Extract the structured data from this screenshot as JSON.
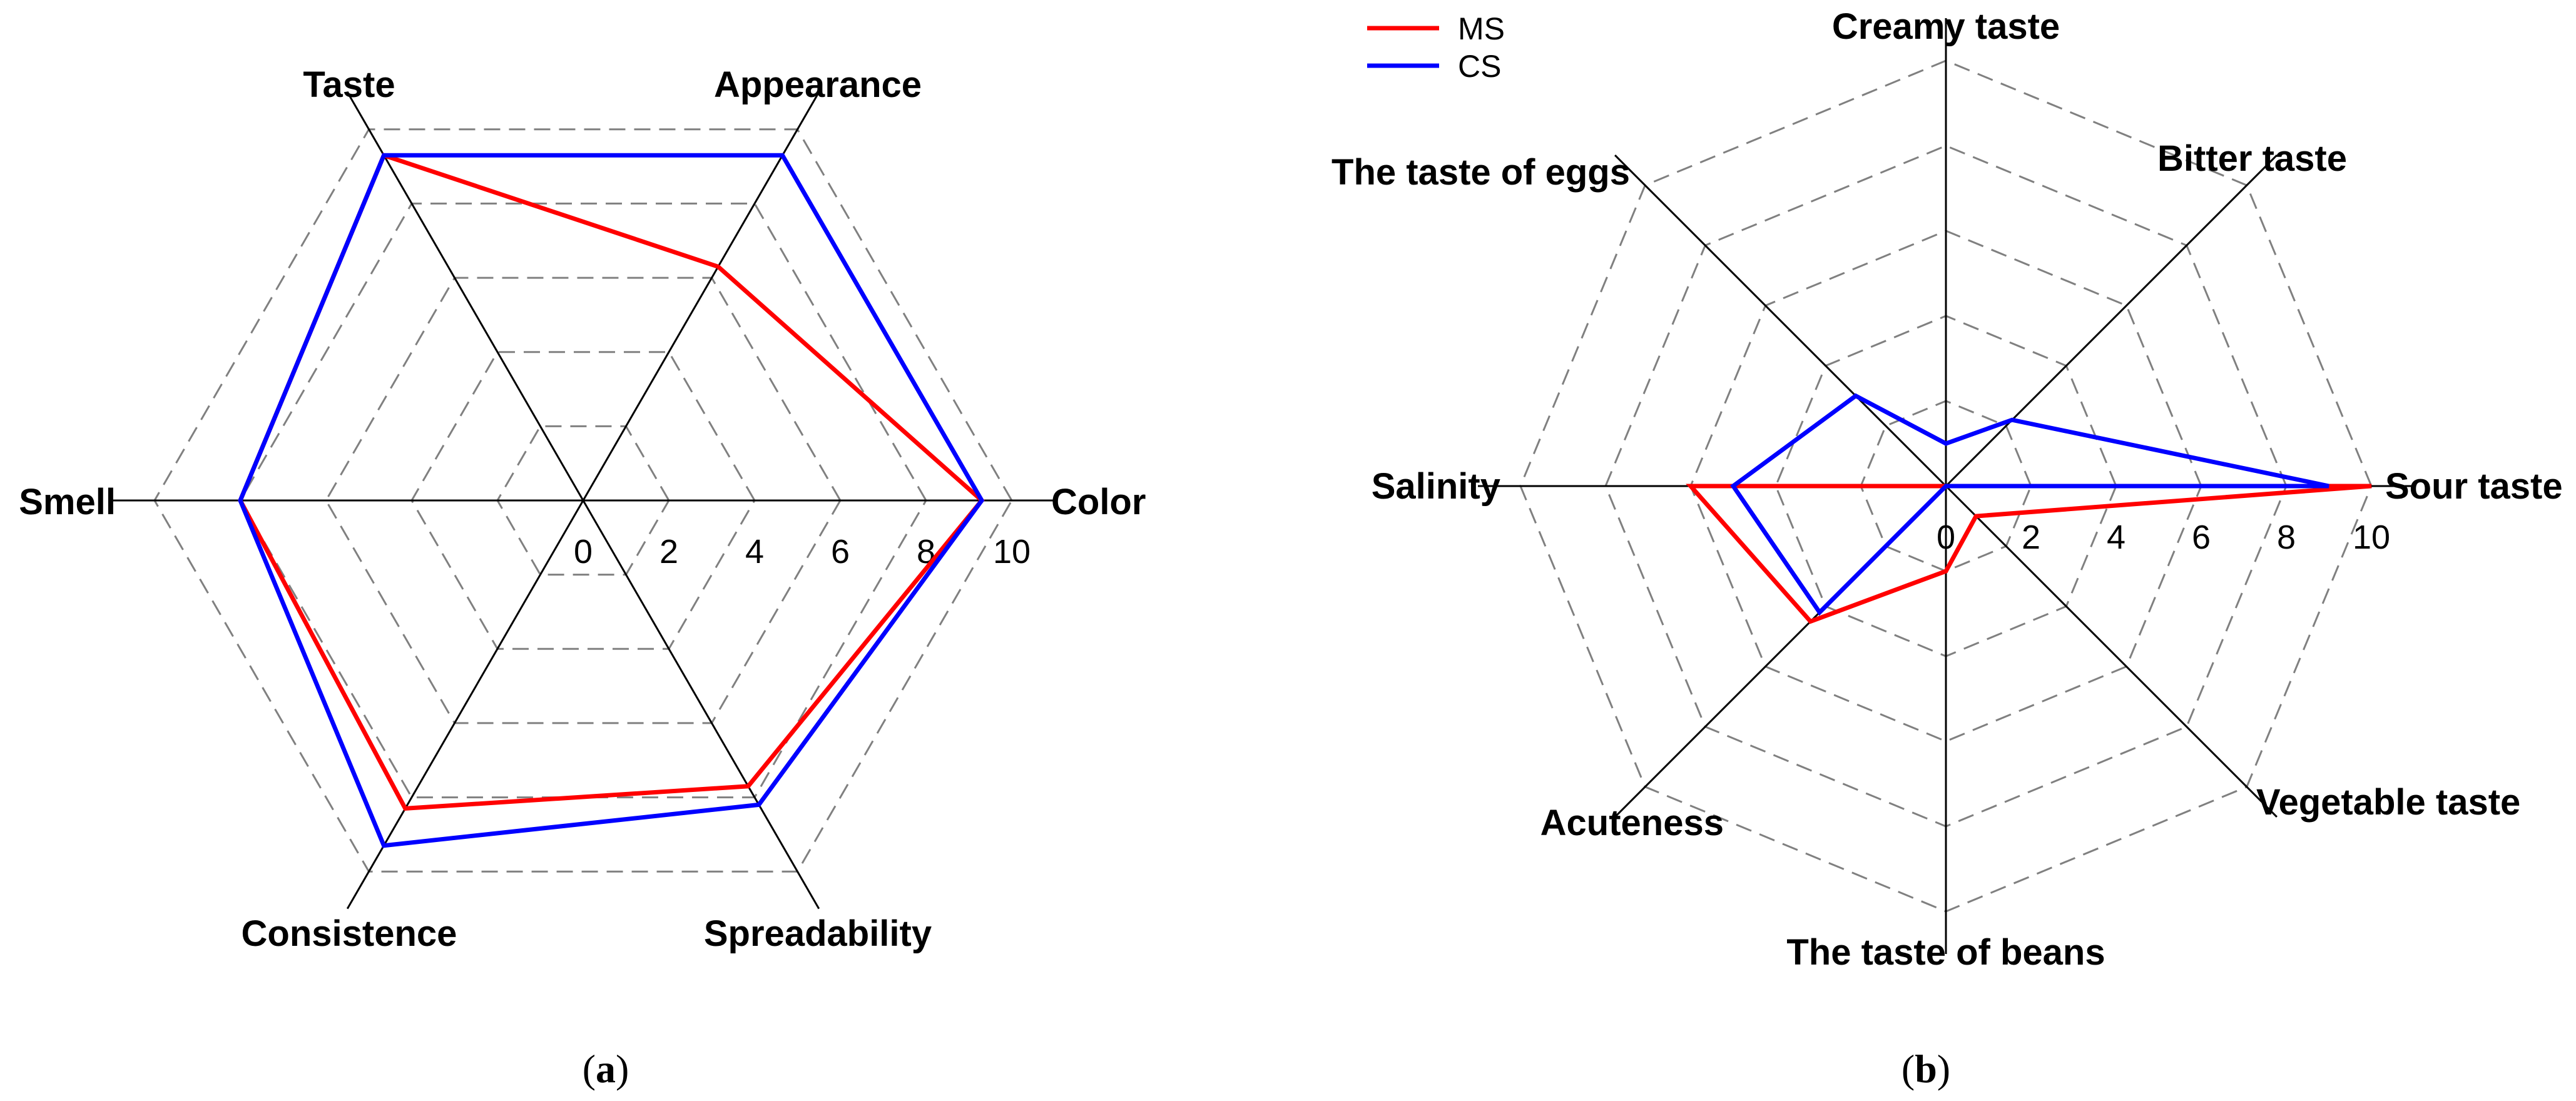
{
  "chart_data": [
    {
      "type": "radar",
      "panel_label": "a",
      "axes": [
        "Color",
        "Appearance",
        "Taste",
        "Smell",
        "Consistence",
        "Spreadability"
      ],
      "rmin": 0,
      "rmax": 10,
      "ticks": [
        0,
        2,
        4,
        6,
        8,
        10
      ],
      "grid": "dashed",
      "series": [
        {
          "name": "MS",
          "color": "#ff0000",
          "values": [
            9.3,
            6.3,
            9.3,
            8.0,
            8.3,
            7.7
          ]
        },
        {
          "name": "CS",
          "color": "#0000ff",
          "values": [
            9.3,
            9.3,
            9.3,
            8.0,
            9.3,
            8.2
          ]
        }
      ]
    },
    {
      "type": "radar",
      "panel_label": "b",
      "axes": [
        "Sour taste",
        "Bitter taste",
        "Creamy taste",
        "The taste of eggs",
        "Salinity",
        "Acuteness",
        "The taste of beans",
        "Vegetable taste"
      ],
      "rmin": 0,
      "rmax": 10,
      "ticks": [
        0,
        2,
        4,
        6,
        8,
        10
      ],
      "grid": "dashed",
      "legend": {
        "position": "top-left",
        "entries": [
          "MS",
          "CS"
        ]
      },
      "series": [
        {
          "name": "MS",
          "color": "#ff0000",
          "values": [
            10.0,
            0.0,
            0.0,
            0.0,
            6.0,
            4.5,
            2.0,
            1.0
          ]
        },
        {
          "name": "CS",
          "color": "#0000ff",
          "values": [
            9.0,
            2.2,
            1.0,
            3.0,
            5.0,
            4.2,
            0.0,
            0.0
          ]
        }
      ]
    }
  ]
}
